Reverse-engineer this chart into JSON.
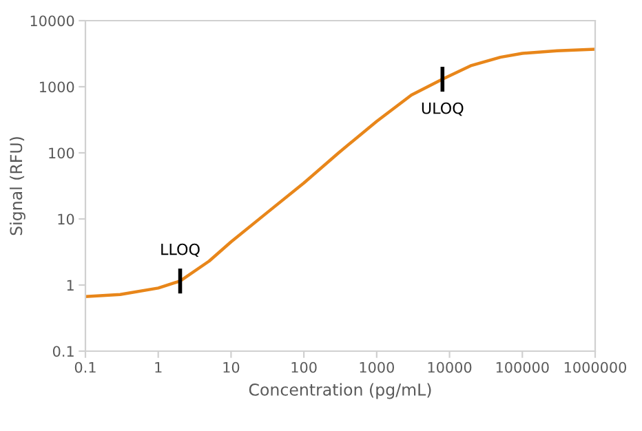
{
  "chart_data": {
    "type": "line",
    "xlabel": "Concentration (pg/mL)",
    "ylabel": "Signal (RFU)",
    "log": "xy",
    "grid": false,
    "marker": "none",
    "line_style": "solid",
    "xlim": [
      0.1,
      1000000
    ],
    "ylim": [
      0.1,
      10000
    ],
    "xticks": [
      0.1,
      1,
      10,
      100,
      1000,
      10000,
      100000,
      1000000
    ],
    "yticks": [
      0.1,
      1,
      10,
      100,
      1000,
      10000
    ],
    "series": [
      {
        "color": "#e8861a",
        "x": [
          0.1,
          0.3,
          1,
          2,
          5,
          10,
          30,
          100,
          300,
          1000,
          3000,
          8000,
          20000,
          50000,
          100000,
          300000,
          1000000
        ],
        "values": [
          0.67,
          0.72,
          0.9,
          1.15,
          2.3,
          4.5,
          12,
          35,
          100,
          300,
          750,
          1300,
          2100,
          2800,
          3200,
          3500,
          3700
        ]
      }
    ],
    "annotations": [
      {
        "text": "LLOQ",
        "x": 2,
        "y": 1.15
      },
      {
        "text": "ULOQ",
        "x": 8000,
        "y": 1300
      }
    ]
  }
}
